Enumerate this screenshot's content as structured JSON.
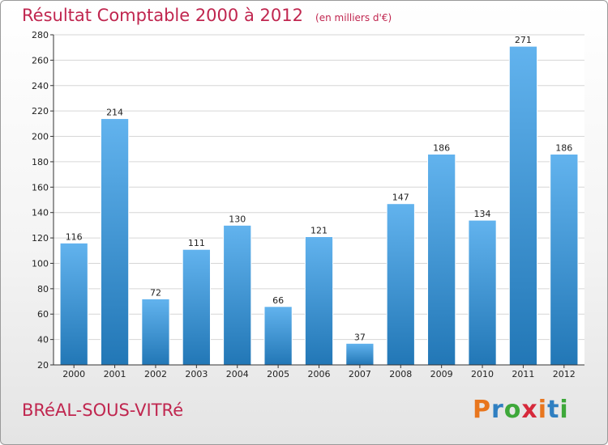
{
  "title": "Résultat Comptable 2000 à 2012",
  "unit_note": "(en milliers d'€)",
  "commune": "BRéAL-SOUS-VITRé",
  "logo": {
    "text": "Proxiti",
    "colors": [
      "#e8761e",
      "#2f7fc1",
      "#3ea83a",
      "#d6293b",
      "#e8761e",
      "#2f7fc1",
      "#3ea83a"
    ]
  },
  "colors": {
    "bar_light": "#62b3ee",
    "bar_dark": "#2277b6",
    "title": "#c0264f"
  },
  "chart_data": {
    "type": "bar",
    "title": "Résultat Comptable 2000 à 2012",
    "subtitle": "(en milliers d'€)",
    "xlabel": "",
    "ylabel": "",
    "categories": [
      "2000",
      "2001",
      "2002",
      "2003",
      "2004",
      "2005",
      "2006",
      "2007",
      "2008",
      "2009",
      "2010",
      "2011",
      "2012"
    ],
    "values": [
      116,
      214,
      72,
      111,
      130,
      66,
      121,
      37,
      147,
      186,
      134,
      271,
      186
    ],
    "ylim": [
      20,
      280
    ],
    "yticks": [
      20,
      40,
      60,
      80,
      100,
      120,
      140,
      160,
      180,
      200,
      220,
      240,
      260,
      280
    ],
    "grid": true,
    "legend": "none"
  }
}
